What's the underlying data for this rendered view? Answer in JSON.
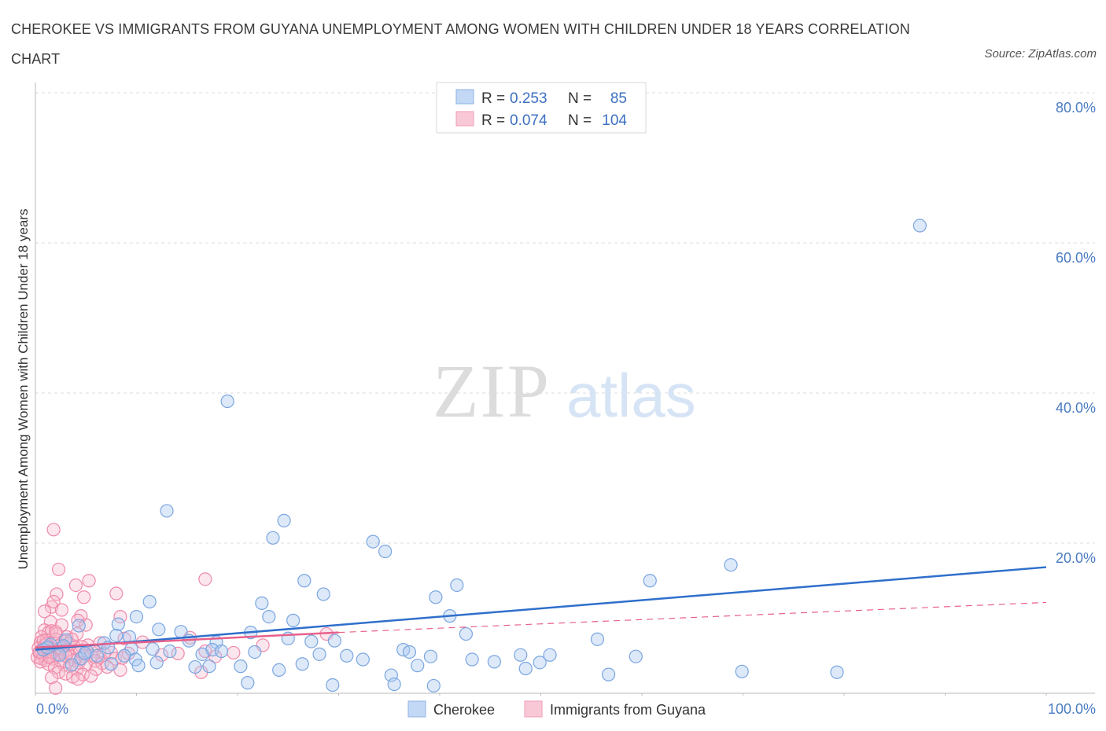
{
  "title": "CHEROKEE VS IMMIGRANTS FROM GUYANA UNEMPLOYMENT AMONG WOMEN WITH CHILDREN UNDER 18 YEARS CORRELATION CHART",
  "source": "Source: ZipAtlas.com",
  "watermark": {
    "zip": "ZIP",
    "atlas": "atlas"
  },
  "colors": {
    "blue": "#a9c7f0",
    "blue_stroke": "#7aa6e0",
    "blue_line": "#2f6fcb",
    "pink": "#f7b8cb",
    "pink_stroke": "#ef8aa9",
    "pink_line": "#e8608a",
    "grid": "#dddddd"
  },
  "legend": {
    "r_label": "R =",
    "n_label": "N =",
    "series": [
      {
        "name": "Cherokee",
        "r": "0.253",
        "n": "85"
      },
      {
        "name": "Immigrants from Guyana",
        "r": "0.074",
        "n": "104"
      }
    ]
  },
  "chart_data": {
    "type": "scatter",
    "xlabel": "",
    "ylabel": "Unemployment Among Women with Children Under 18 years",
    "xlim": [
      0,
      100
    ],
    "ylim": [
      0,
      80
    ],
    "x_tick_labels": [
      "0.0%",
      "100.0%"
    ],
    "y_ticks": [
      20,
      40,
      60,
      80
    ],
    "y_tick_labels": [
      "20.0%",
      "40.0%",
      "60.0%",
      "80.0%"
    ],
    "series": [
      {
        "name": "Cherokee",
        "trend": {
          "x": [
            0,
            100
          ],
          "y": [
            5.8,
            16.8
          ],
          "style": "solid"
        },
        "points": [
          [
            87.5,
            62.3
          ],
          [
            19,
            38.9
          ],
          [
            13,
            24.3
          ],
          [
            24.6,
            23
          ],
          [
            23.5,
            20.7
          ],
          [
            33.4,
            20.2
          ],
          [
            34.6,
            18.9
          ],
          [
            68.8,
            17.1
          ],
          [
            26.6,
            15
          ],
          [
            60.8,
            15
          ],
          [
            41.7,
            14.4
          ],
          [
            28.5,
            13.2
          ],
          [
            39.6,
            12.8
          ],
          [
            11.3,
            12.2
          ],
          [
            22.4,
            12
          ],
          [
            41,
            10.3
          ],
          [
            23.1,
            10.2
          ],
          [
            10,
            10.2
          ],
          [
            25.5,
            9.7
          ],
          [
            4.3,
            9
          ],
          [
            8.2,
            9.2
          ],
          [
            12.2,
            8.5
          ],
          [
            14.4,
            8.2
          ],
          [
            21.3,
            8.1
          ],
          [
            42.6,
            7.9
          ],
          [
            8,
            7.7
          ],
          [
            9.3,
            7.5
          ],
          [
            25,
            7.3
          ],
          [
            55.6,
            7.2
          ],
          [
            3,
            7.1
          ],
          [
            27.3,
            6.9
          ],
          [
            6.8,
            6.7
          ],
          [
            15.2,
            7
          ],
          [
            17.9,
            6.8
          ],
          [
            29.6,
            7
          ],
          [
            1.5,
            6.5
          ],
          [
            2.8,
            6.3
          ],
          [
            7.2,
            6.1
          ],
          [
            9.5,
            5.9
          ],
          [
            11.6,
            5.9
          ],
          [
            17.5,
            5.8
          ],
          [
            36.4,
            5.8
          ],
          [
            5.1,
            5.6
          ],
          [
            13.3,
            5.6
          ],
          [
            21.7,
            5.5
          ],
          [
            28.1,
            5.2
          ],
          [
            37,
            5.5
          ],
          [
            2.4,
            5.1
          ],
          [
            8.8,
            5
          ],
          [
            16.5,
            5.2
          ],
          [
            30.8,
            5
          ],
          [
            48,
            5.1
          ],
          [
            50.9,
            5.1
          ],
          [
            59.4,
            4.9
          ],
          [
            39.1,
            4.9
          ],
          [
            4.5,
            4.6
          ],
          [
            9.9,
            4.5
          ],
          [
            32.4,
            4.5
          ],
          [
            43.2,
            4.5
          ],
          [
            49.9,
            4.1
          ],
          [
            45.4,
            4.2
          ],
          [
            12,
            4.1
          ],
          [
            7.5,
            3.9
          ],
          [
            10.2,
            3.7
          ],
          [
            26.4,
            3.9
          ],
          [
            37.8,
            3.7
          ],
          [
            20.3,
            3.6
          ],
          [
            15.8,
            3.5
          ],
          [
            17.2,
            3.6
          ],
          [
            48.5,
            3.3
          ],
          [
            24.1,
            3.1
          ],
          [
            35.2,
            2.4
          ],
          [
            56.7,
            2.5
          ],
          [
            69.9,
            2.9
          ],
          [
            79.3,
            2.8
          ],
          [
            21,
            1.4
          ],
          [
            29.4,
            1.1
          ],
          [
            35.5,
            1.2
          ],
          [
            39.4,
            1
          ],
          [
            3.6,
            3.8
          ],
          [
            0.8,
            5.8
          ],
          [
            1.2,
            6.1
          ],
          [
            18.4,
            5.6
          ],
          [
            4.9,
            5.3
          ],
          [
            6.1,
            5
          ]
        ]
      },
      {
        "name": "Immigrants from Guyana",
        "trend": {
          "x": [
            0,
            30
          ],
          "y": [
            6.1,
            8.1
          ],
          "style": "solid",
          "extension": {
            "x": [
              30,
              100
            ],
            "y": [
              8.1,
              12.1
            ],
            "style": "dashed"
          }
        },
        "points": [
          [
            1.8,
            21.8
          ],
          [
            2.3,
            16.5
          ],
          [
            5.3,
            15
          ],
          [
            16.8,
            15.2
          ],
          [
            4,
            14.4
          ],
          [
            2.1,
            13.2
          ],
          [
            8,
            13.3
          ],
          [
            4.8,
            12.8
          ],
          [
            1.6,
            11.5
          ],
          [
            1.8,
            12.2
          ],
          [
            2.6,
            11.1
          ],
          [
            0.9,
            10.9
          ],
          [
            4.5,
            10.3
          ],
          [
            4.2,
            9.7
          ],
          [
            1.5,
            9.5
          ],
          [
            8.4,
            10.2
          ],
          [
            2.6,
            9.1
          ],
          [
            5,
            9.1
          ],
          [
            0.9,
            8.4
          ],
          [
            1.3,
            8.1
          ],
          [
            1.6,
            8.3
          ],
          [
            2.1,
            7.9
          ],
          [
            3.1,
            7.5
          ],
          [
            4.1,
            7.9
          ],
          [
            8.8,
            7.3
          ],
          [
            0.6,
            7.5
          ],
          [
            1.1,
            7.1
          ],
          [
            2,
            7.2
          ],
          [
            2.9,
            6.9
          ],
          [
            3.3,
            6.6
          ],
          [
            3.6,
            7.2
          ],
          [
            5.2,
            6.4
          ],
          [
            6.4,
            6.7
          ],
          [
            0.5,
            6.8
          ],
          [
            0.9,
            6.4
          ],
          [
            1.4,
            6.2
          ],
          [
            2.4,
            6.4
          ],
          [
            3.9,
            6.1
          ],
          [
            4.6,
            6.2
          ],
          [
            0.3,
            6
          ],
          [
            0.7,
            5.9
          ],
          [
            1.2,
            5.7
          ],
          [
            1.9,
            5.8
          ],
          [
            2.7,
            5.5
          ],
          [
            3.2,
            5.4
          ],
          [
            4.4,
            5.5
          ],
          [
            5.8,
            5.6
          ],
          [
            6.8,
            5.3
          ],
          [
            7.5,
            5.4
          ],
          [
            0.4,
            5.3
          ],
          [
            0.8,
            5.1
          ],
          [
            1.5,
            5
          ],
          [
            2.2,
            5.2
          ],
          [
            3.5,
            4.9
          ],
          [
            4.8,
            4.9
          ],
          [
            5.5,
            5
          ],
          [
            6.2,
            4.8
          ],
          [
            7.9,
            4.6
          ],
          [
            8.6,
            4.7
          ],
          [
            0.6,
            4.6
          ],
          [
            1,
            4.4
          ],
          [
            1.7,
            4.6
          ],
          [
            2.5,
            4.3
          ],
          [
            3.8,
            4.4
          ],
          [
            4.3,
            4.1
          ],
          [
            5.9,
            4.3
          ],
          [
            6.6,
            4
          ],
          [
            0.2,
            4.8
          ],
          [
            0.5,
            4.2
          ],
          [
            1.3,
            3.9
          ],
          [
            2.8,
            3.8
          ],
          [
            3.4,
            3.6
          ],
          [
            5,
            3.8
          ],
          [
            7.1,
            3.5
          ],
          [
            1.9,
            3.4
          ],
          [
            4.1,
            3.2
          ],
          [
            6,
            3.2
          ],
          [
            8.4,
            3.1
          ],
          [
            2.3,
            2.8
          ],
          [
            3,
            2.6
          ],
          [
            4.7,
            2.5
          ],
          [
            3.7,
            2.2
          ],
          [
            5.5,
            2.3
          ],
          [
            1.6,
            2.1
          ],
          [
            4.2,
            1.9
          ],
          [
            2,
            0.7
          ],
          [
            16.4,
            2.8
          ],
          [
            22.5,
            6.4
          ],
          [
            28.8,
            7.9
          ],
          [
            16.8,
            5.6
          ],
          [
            19.6,
            5.4
          ],
          [
            14.1,
            5.3
          ],
          [
            12.5,
            5.1
          ],
          [
            15.3,
            7.4
          ],
          [
            10.6,
            6.8
          ],
          [
            17.8,
            4.9
          ],
          [
            9.2,
            5.3
          ],
          [
            1.1,
            6.6
          ],
          [
            0.4,
            5.5
          ],
          [
            2.5,
            6
          ],
          [
            3,
            5
          ],
          [
            1.4,
            4.8
          ],
          [
            0.8,
            7
          ],
          [
            2,
            8.2
          ]
        ]
      }
    ]
  }
}
